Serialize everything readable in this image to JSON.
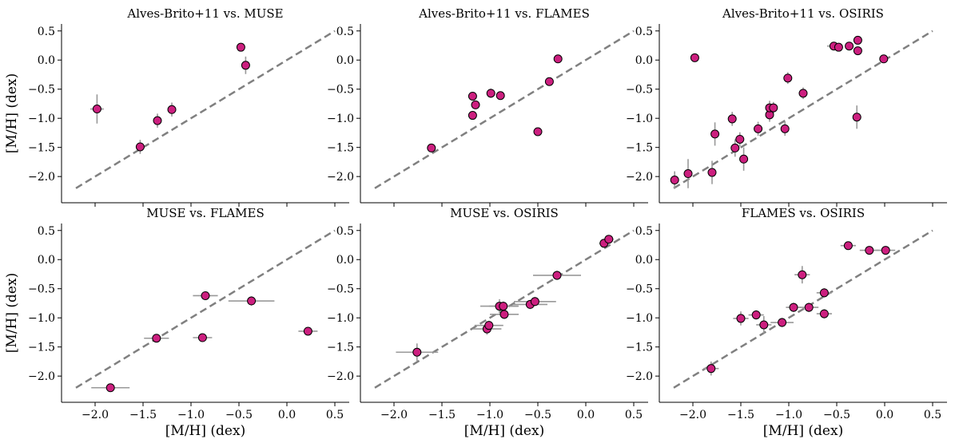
{
  "figure": {
    "xlabel": "[M/H] (dex)",
    "ylabel": "[M/H] (dex)"
  },
  "chart_data": [
    {
      "type": "scatter",
      "title": "Alves-Brito+11 vs. MUSE",
      "xlim": [
        -2.35,
        0.65
      ],
      "ylim": [
        -2.45,
        0.62
      ],
      "xticks": [
        -2.0,
        -1.5,
        -1.0,
        -0.5,
        0.0,
        0.5
      ],
      "yticks": [
        0.5,
        0.0,
        -0.5,
        -1.0,
        -1.5,
        -2.0
      ],
      "diagonal": [
        [
          -2.2,
          -2.2
        ],
        [
          0.5,
          0.5
        ]
      ],
      "points": [
        {
          "x": -1.98,
          "y": -0.84,
          "xerr": 0.07,
          "yerr": 0.25
        },
        {
          "x": -1.53,
          "y": -1.49,
          "xerr": 0.0,
          "yerr": 0.12
        },
        {
          "x": -1.35,
          "y": -1.04,
          "xerr": 0.0,
          "yerr": 0.12
        },
        {
          "x": -1.2,
          "y": -0.85,
          "xerr": 0.0,
          "yerr": 0.12
        },
        {
          "x": -0.48,
          "y": 0.22,
          "xerr": 0.0,
          "yerr": 0.07
        },
        {
          "x": -0.43,
          "y": -0.09,
          "xerr": 0.0,
          "yerr": 0.15
        }
      ]
    },
    {
      "type": "scatter",
      "title": "Alves-Brito+11 vs. FLAMES",
      "xlim": [
        -2.35,
        0.65
      ],
      "ylim": [
        -2.45,
        0.62
      ],
      "xticks": [
        -2.0,
        -1.5,
        -1.0,
        -0.5,
        0.0,
        0.5
      ],
      "yticks": [
        0.5,
        0.0,
        -0.5,
        -1.0,
        -1.5,
        -2.0
      ],
      "diagonal": [
        [
          -2.2,
          -2.2
        ],
        [
          0.5,
          0.5
        ]
      ],
      "points": [
        {
          "x": -1.61,
          "y": -1.51,
          "xerr": 0.0,
          "yerr": 0.05
        },
        {
          "x": -1.18,
          "y": -0.62,
          "xerr": 0.0,
          "yerr": 0.05
        },
        {
          "x": -1.18,
          "y": -0.95,
          "xerr": 0.0,
          "yerr": 0.05
        },
        {
          "x": -1.15,
          "y": -0.77,
          "xerr": 0.0,
          "yerr": 0.05
        },
        {
          "x": -0.99,
          "y": -0.57,
          "xerr": 0.0,
          "yerr": 0.08
        },
        {
          "x": -0.89,
          "y": -0.61,
          "xerr": 0.0,
          "yerr": 0.05
        },
        {
          "x": -0.5,
          "y": -1.23,
          "xerr": 0.0,
          "yerr": 0.05
        },
        {
          "x": -0.38,
          "y": -0.37,
          "xerr": 0.0,
          "yerr": 0.05
        },
        {
          "x": -0.29,
          "y": 0.02,
          "xerr": 0.0,
          "yerr": 0.05
        }
      ]
    },
    {
      "type": "scatter",
      "title": "Alves-Brito+11 vs. OSIRIS",
      "xlim": [
        -2.35,
        0.65
      ],
      "ylim": [
        -2.45,
        0.62
      ],
      "xticks": [
        -2.0,
        -1.5,
        -1.0,
        -0.5,
        0.0,
        0.5
      ],
      "yticks": [
        0.5,
        0.0,
        -0.5,
        -1.0,
        -1.5,
        -2.0
      ],
      "diagonal": [
        [
          -2.2,
          -2.2
        ],
        [
          0.5,
          0.5
        ]
      ],
      "points": [
        {
          "x": -2.19,
          "y": -2.06,
          "xerr": 0.0,
          "yerr": 0.15
        },
        {
          "x": -2.05,
          "y": -1.95,
          "xerr": 0.0,
          "yerr": 0.25
        },
        {
          "x": -1.98,
          "y": 0.04,
          "xerr": 0.0,
          "yerr": 0.07
        },
        {
          "x": -1.8,
          "y": -1.93,
          "xerr": 0.0,
          "yerr": 0.2
        },
        {
          "x": -1.77,
          "y": -1.27,
          "xerr": 0.0,
          "yerr": 0.2
        },
        {
          "x": -1.59,
          "y": -1.01,
          "xerr": 0.0,
          "yerr": 0.12
        },
        {
          "x": -1.56,
          "y": -1.51,
          "xerr": 0.0,
          "yerr": 0.15
        },
        {
          "x": -1.51,
          "y": -1.36,
          "xerr": 0.0,
          "yerr": 0.12
        },
        {
          "x": -1.47,
          "y": -1.7,
          "xerr": 0.0,
          "yerr": 0.2
        },
        {
          "x": -1.32,
          "y": -1.18,
          "xerr": 0.0,
          "yerr": 0.12
        },
        {
          "x": -1.2,
          "y": -0.94,
          "xerr": 0.0,
          "yerr": 0.12
        },
        {
          "x": -1.2,
          "y": -0.82,
          "xerr": 0.0,
          "yerr": 0.12
        },
        {
          "x": -1.16,
          "y": -0.82,
          "xerr": 0.0,
          "yerr": 0.1
        },
        {
          "x": -1.04,
          "y": -1.18,
          "xerr": 0.0,
          "yerr": 0.12
        },
        {
          "x": -1.01,
          "y": -0.31,
          "xerr": 0.0,
          "yerr": 0.1
        },
        {
          "x": -0.85,
          "y": -0.57,
          "xerr": 0.0,
          "yerr": 0.1
        },
        {
          "x": -0.53,
          "y": 0.24,
          "xerr": 0.07,
          "yerr": 0.05
        },
        {
          "x": -0.48,
          "y": 0.22,
          "xerr": 0.0,
          "yerr": 0.05
        },
        {
          "x": -0.37,
          "y": 0.24,
          "xerr": 0.0,
          "yerr": 0.05
        },
        {
          "x": -0.28,
          "y": 0.34,
          "xerr": 0.0,
          "yerr": 0.05
        },
        {
          "x": -0.28,
          "y": 0.16,
          "xerr": 0.0,
          "yerr": 0.05
        },
        {
          "x": -0.29,
          "y": -0.98,
          "xerr": 0.0,
          "yerr": 0.2
        },
        {
          "x": -0.01,
          "y": 0.02,
          "xerr": 0.0,
          "yerr": 0.05
        }
      ]
    },
    {
      "type": "scatter",
      "title": "MUSE vs. FLAMES",
      "xlim": [
        -2.35,
        0.65
      ],
      "ylim": [
        -2.45,
        0.62
      ],
      "xticks": [
        -2.0,
        -1.5,
        -1.0,
        -0.5,
        0.0,
        0.5
      ],
      "yticks": [
        0.5,
        0.0,
        -0.5,
        -1.0,
        -1.5,
        -2.0
      ],
      "diagonal": [
        [
          -2.2,
          -2.2
        ],
        [
          0.5,
          0.5
        ]
      ],
      "points": [
        {
          "x": -1.84,
          "y": -2.2,
          "xerr": 0.2,
          "yerr": 0.0
        },
        {
          "x": -1.36,
          "y": -1.35,
          "xerr": 0.13,
          "yerr": 0.0
        },
        {
          "x": -0.88,
          "y": -1.34,
          "xerr": 0.1,
          "yerr": 0.0
        },
        {
          "x": -0.85,
          "y": -0.62,
          "xerr": 0.13,
          "yerr": 0.0
        },
        {
          "x": -0.37,
          "y": -0.71,
          "xerr": 0.24,
          "yerr": 0.08
        },
        {
          "x": 0.22,
          "y": -1.23,
          "xerr": 0.1,
          "yerr": 0.0
        }
      ]
    },
    {
      "type": "scatter",
      "title": "MUSE vs. OSIRIS",
      "xlim": [
        -2.35,
        0.65
      ],
      "ylim": [
        -2.45,
        0.62
      ],
      "xticks": [
        -2.0,
        -1.5,
        -1.0,
        -0.5,
        0.0,
        0.5
      ],
      "yticks": [
        0.5,
        0.0,
        -0.5,
        -1.0,
        -1.5,
        -2.0
      ],
      "diagonal": [
        [
          -2.2,
          -2.2
        ],
        [
          0.5,
          0.5
        ]
      ],
      "points": [
        {
          "x": -1.76,
          "y": -1.59,
          "xerr": 0.22,
          "yerr": 0.15
        },
        {
          "x": -1.03,
          "y": -1.19,
          "xerr": 0.15,
          "yerr": 0.1
        },
        {
          "x": -1.01,
          "y": -1.13,
          "xerr": 0.15,
          "yerr": 0.08
        },
        {
          "x": -0.9,
          "y": -0.8,
          "xerr": 0.2,
          "yerr": 0.12
        },
        {
          "x": -0.86,
          "y": -0.8,
          "xerr": 0.15,
          "yerr": 0.08
        },
        {
          "x": -0.85,
          "y": -0.94,
          "xerr": 0.15,
          "yerr": 0.08
        },
        {
          "x": -0.58,
          "y": -0.77,
          "xerr": 0.18,
          "yerr": 0.08
        },
        {
          "x": -0.53,
          "y": -0.72,
          "xerr": 0.22,
          "yerr": 0.08
        },
        {
          "x": -0.3,
          "y": -0.27,
          "xerr": 0.25,
          "yerr": 0.08
        },
        {
          "x": 0.19,
          "y": 0.28,
          "xerr": 0.05,
          "yerr": 0.05
        },
        {
          "x": 0.24,
          "y": 0.35,
          "xerr": 0.05,
          "yerr": 0.05
        }
      ]
    },
    {
      "type": "scatter",
      "title": "FLAMES vs. OSIRIS",
      "xlim": [
        -2.35,
        0.65
      ],
      "ylim": [
        -2.45,
        0.62
      ],
      "xticks": [
        -2.0,
        -1.5,
        -1.0,
        -0.5,
        0.0,
        0.5
      ],
      "yticks": [
        0.5,
        0.0,
        -0.5,
        -1.0,
        -1.5,
        -2.0
      ],
      "diagonal": [
        [
          -2.2,
          -2.2
        ],
        [
          0.5,
          0.5
        ]
      ],
      "points": [
        {
          "x": -1.81,
          "y": -1.87,
          "xerr": 0.08,
          "yerr": 0.12
        },
        {
          "x": -1.5,
          "y": -1.01,
          "xerr": 0.08,
          "yerr": 0.12
        },
        {
          "x": -1.34,
          "y": -0.95,
          "xerr": 0.08,
          "yerr": 0.08
        },
        {
          "x": -1.26,
          "y": -1.12,
          "xerr": 0.08,
          "yerr": 0.15
        },
        {
          "x": -1.07,
          "y": -1.08,
          "xerr": 0.12,
          "yerr": 0.08
        },
        {
          "x": -0.95,
          "y": -0.82,
          "xerr": 0.08,
          "yerr": 0.08
        },
        {
          "x": -0.86,
          "y": -0.26,
          "xerr": 0.08,
          "yerr": 0.15
        },
        {
          "x": -0.79,
          "y": -0.82,
          "xerr": 0.1,
          "yerr": 0.08
        },
        {
          "x": -0.63,
          "y": -0.57,
          "xerr": 0.08,
          "yerr": 0.08
        },
        {
          "x": -0.63,
          "y": -0.93,
          "xerr": 0.08,
          "yerr": 0.08
        },
        {
          "x": -0.38,
          "y": 0.24,
          "xerr": 0.08,
          "yerr": 0.05
        },
        {
          "x": -0.16,
          "y": 0.16,
          "xerr": 0.1,
          "yerr": 0.05
        },
        {
          "x": 0.01,
          "y": 0.16,
          "xerr": 0.1,
          "yerr": 0.05
        }
      ]
    }
  ],
  "colors": {
    "marker": "#cc1f7f",
    "marker_edge": "#000000",
    "errorbar": "#999999",
    "diagonal": "#808080"
  }
}
